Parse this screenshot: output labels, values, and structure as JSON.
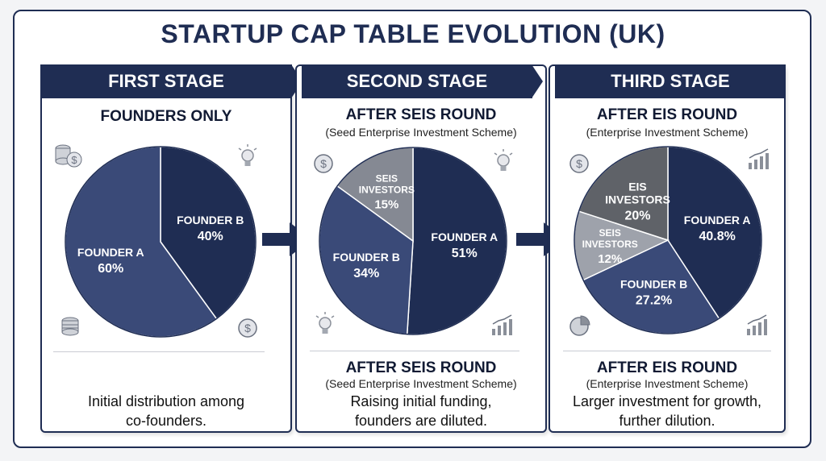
{
  "title": "STARTUP CAP TABLE EVOLUTION (UK)",
  "colors": {
    "navy": "#1f2d53",
    "slate_blue": "#3a4a78",
    "gray": "#858993",
    "dark_gray": "#5f6268",
    "light_gray": "#9ea2ab"
  },
  "stages": [
    {
      "banner": "FIRST STAGE",
      "heading": "FOUNDERS ONLY",
      "note": "",
      "footer_heading": "",
      "footer_note": "",
      "description_lines": [
        "Initial distribution  among",
        "co-founders."
      ],
      "icons": [
        "coins-dollar-icon",
        "lightbulb-icon",
        "coins-stack-icon",
        "dollar-coin-icon"
      ]
    },
    {
      "banner": "SECOND STAGE",
      "heading": "AFTER SEIS ROUND",
      "note": "(Seed Enterprise Investment Scheme)",
      "footer_heading": "AFTER SEIS ROUND",
      "footer_note": "(Seed Enterprise Investment Scheme)",
      "description_lines": [
        "Raising initial funding,",
        "founders are diluted."
      ],
      "icons": [
        "dollar-coin-icon",
        "lightbulb-icon",
        "lightbulb-icon",
        "growth-chart-icon"
      ]
    },
    {
      "banner": "THIRD STAGE",
      "heading": "AFTER EIS ROUND",
      "note": "(Enterprise Investment Scheme)",
      "footer_heading": "AFTER EIS ROUND",
      "footer_note": "(Enterprise Investment Scheme)",
      "description_lines": [
        "Larger investment for growth,",
        "further dilution."
      ],
      "icons": [
        "dollar-coin-icon",
        "growth-chart-icon",
        "pie-chart-icon",
        "growth-chart-icon"
      ]
    }
  ],
  "chart_data": [
    {
      "type": "pie",
      "title": "FIRST STAGE",
      "slices": [
        {
          "label": [
            "FOUNDER B"
          ],
          "value": 40,
          "value_label": "40%",
          "color": "#1f2d53"
        },
        {
          "label": [
            "FOUNDER A"
          ],
          "value": 60,
          "value_label": "60%",
          "color": "#3a4a78"
        }
      ]
    },
    {
      "type": "pie",
      "title": "SECOND STAGE",
      "slices": [
        {
          "label": [
            "FOUNDER A"
          ],
          "value": 51,
          "value_label": "51%",
          "color": "#1f2d53"
        },
        {
          "label": [
            "FOUNDER B"
          ],
          "value": 34,
          "value_label": "34%",
          "color": "#3a4a78"
        },
        {
          "label": [
            "SEIS",
            "INVESTORS"
          ],
          "value": 15,
          "value_label": "15%",
          "color": "#858993"
        }
      ]
    },
    {
      "type": "pie",
      "title": "THIRD STAGE",
      "slices": [
        {
          "label": [
            "FOUNDER A"
          ],
          "value": 40.8,
          "value_label": "40.8%",
          "color": "#1f2d53"
        },
        {
          "label": [
            "FOUNDER B"
          ],
          "value": 27.2,
          "value_label": "27.2%",
          "color": "#3a4a78"
        },
        {
          "label": [
            "SEIS",
            "INVESTORS"
          ],
          "value": 12,
          "value_label": "12%",
          "color": "#9ea2ab"
        },
        {
          "label": [
            "EIS",
            "INVESTORS"
          ],
          "value": 20,
          "value_label": "20%",
          "color": "#5f6268"
        }
      ]
    }
  ]
}
